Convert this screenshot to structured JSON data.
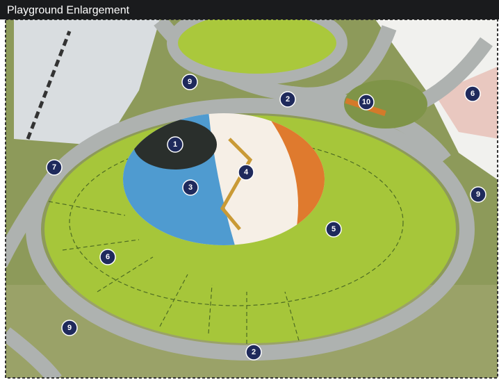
{
  "header": {
    "title": "Playground Enlargement"
  },
  "markers": [
    {
      "label": "1"
    },
    {
      "label": "2"
    },
    {
      "label": "2"
    },
    {
      "label": "3"
    },
    {
      "label": "4"
    },
    {
      "label": "5"
    },
    {
      "label": "6"
    },
    {
      "label": "6"
    },
    {
      "label": "7"
    },
    {
      "label": "9"
    },
    {
      "label": "9"
    },
    {
      "label": "9"
    },
    {
      "label": "10"
    }
  ]
}
